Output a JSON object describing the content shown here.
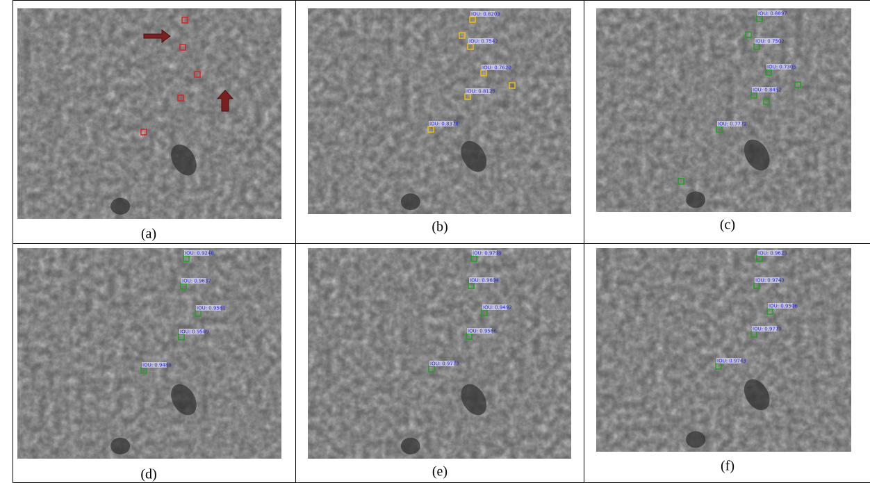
{
  "panels": [
    {
      "caption": "(a)",
      "labels": []
    },
    {
      "caption": "(b)",
      "labels": [
        "IOU: 0.8203",
        "IOU: 0.7542",
        "IOU: 0.7620",
        "IOU: 0.8125",
        "IOU: 0.8378"
      ]
    },
    {
      "caption": "(c)",
      "labels": [
        "IOU: 0.8897",
        "IOU: 0.7502",
        "IOU: 0.7305",
        "IOU: 0.8452",
        "IOU: 0.7772"
      ]
    },
    {
      "caption": "(d)",
      "labels": [
        "IOU: 0.9248",
        "IOU: 0.9637",
        "IOU: 0.9581",
        "IOU: 0.9589",
        "IOU: 0.9488"
      ]
    },
    {
      "caption": "(e)",
      "labels": [
        "IOU: 0.9799",
        "IOU: 0.9604",
        "IOU: 0.9492",
        "IOU: 0.9566",
        "IOU: 0.9773"
      ]
    },
    {
      "caption": "(f)",
      "labels": [
        "IOU: 0.9623",
        "IOU: 0.9743",
        "IOU: 0.9506",
        "IOU: 0.9779",
        "IOU: 0.9743"
      ]
    }
  ]
}
